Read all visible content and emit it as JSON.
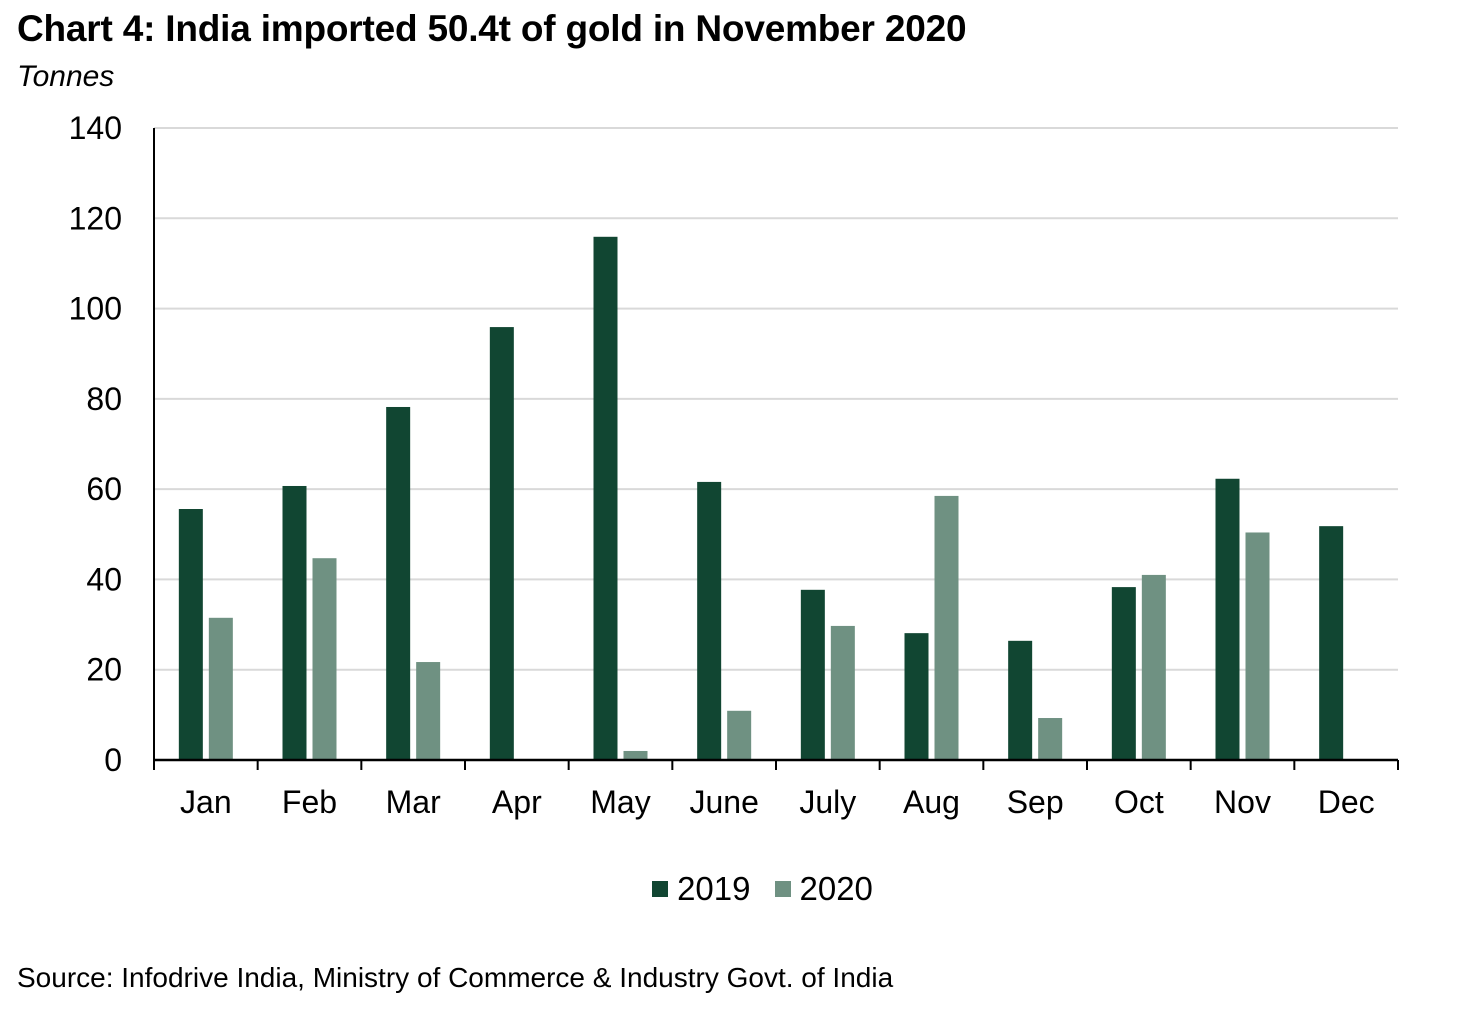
{
  "chart_data": {
    "type": "bar",
    "title": "Chart 4: India imported 50.4t of gold in November 2020",
    "ylabel": "Tonnes",
    "xlabel": "",
    "categories": [
      "Jan",
      "Feb",
      "Mar",
      "Apr",
      "May",
      "June",
      "July",
      "Aug",
      "Sep",
      "Oct",
      "Nov",
      "Dec"
    ],
    "series": [
      {
        "name": "2019",
        "color": "#114632",
        "values": [
          55.6,
          60.7,
          78.2,
          95.9,
          115.9,
          61.6,
          37.7,
          28.1,
          26.4,
          38.3,
          62.3,
          51.8
        ]
      },
      {
        "name": "2020",
        "color": "#6f9182",
        "values": [
          31.5,
          44.7,
          21.7,
          null,
          2.0,
          10.9,
          29.7,
          58.5,
          9.3,
          41.0,
          50.4,
          null
        ]
      }
    ],
    "ylim": [
      0,
      140
    ],
    "yticks": [
      0,
      20,
      40,
      60,
      80,
      100,
      120,
      140
    ],
    "grid": true,
    "legend": "bottom-center",
    "source": "Source: Infodrive India, Ministry of Commerce & Industry Govt. of India"
  }
}
